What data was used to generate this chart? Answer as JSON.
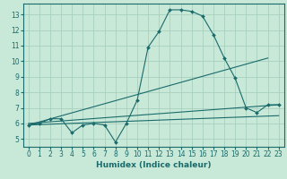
{
  "title": "",
  "xlabel": "Humidex (Indice chaleur)",
  "bg_color": "#c8e8d8",
  "line_color": "#1a6b6b",
  "grid_color": "#a8cfc0",
  "xlim": [
    -0.5,
    23.5
  ],
  "ylim": [
    4.5,
    13.7
  ],
  "xticks": [
    0,
    1,
    2,
    3,
    4,
    5,
    6,
    7,
    8,
    9,
    10,
    11,
    12,
    13,
    14,
    15,
    16,
    17,
    18,
    19,
    20,
    21,
    22,
    23
  ],
  "yticks": [
    5,
    6,
    7,
    8,
    9,
    10,
    11,
    12,
    13
  ],
  "main_x": [
    0,
    1,
    2,
    3,
    4,
    5,
    6,
    7,
    8,
    9,
    10,
    11,
    12,
    13,
    14,
    15,
    16,
    17,
    18,
    19,
    20,
    21,
    22,
    23
  ],
  "main_y": [
    5.9,
    6.0,
    6.3,
    6.3,
    5.4,
    5.9,
    6.0,
    5.9,
    4.8,
    6.0,
    7.5,
    10.9,
    11.9,
    13.3,
    13.3,
    13.2,
    12.9,
    11.7,
    10.2,
    8.9,
    7.0,
    6.7,
    7.2,
    7.2
  ],
  "line1_x": [
    0,
    22
  ],
  "line1_y": [
    5.9,
    10.2
  ],
  "line2_x": [
    0,
    23
  ],
  "line2_y": [
    6.0,
    7.2
  ],
  "line3_x": [
    0,
    23
  ],
  "line3_y": [
    5.9,
    6.5
  ]
}
